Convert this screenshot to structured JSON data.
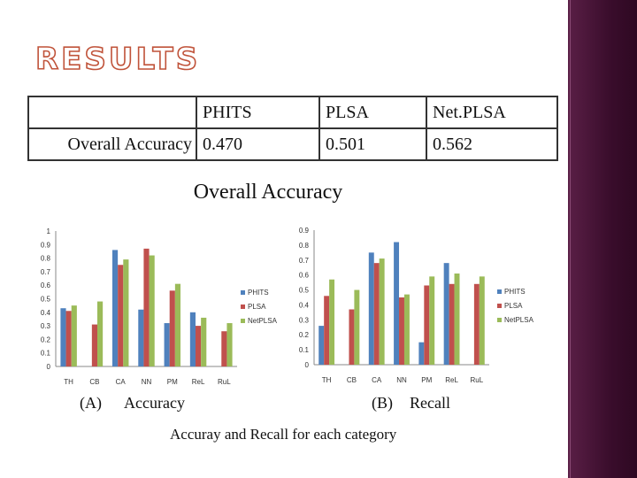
{
  "title": "RESULTS",
  "table": {
    "headers": [
      "",
      "PHITS",
      "PLSA",
      "Net.PLSA"
    ],
    "rows": [
      [
        "Overall Accuracy",
        "0.470",
        "0.501",
        "0.562"
      ]
    ]
  },
  "overall_heading": "Overall Accuracy",
  "captions": {
    "a_letter": "(A)",
    "a_text": "Accuracy",
    "b_letter": "(B)",
    "b_text": "Recall",
    "footer": "Accuray and Recall for each category"
  },
  "colors": {
    "PHITS": "#4f81bd",
    "PLSA": "#c0504d",
    "Net.PLSA": "#9bbb59",
    "title_outline": "#c0533a",
    "side_band": "#3a0d2c"
  },
  "chart_data": [
    {
      "type": "bar",
      "categories": [
        "TH",
        "CB",
        "CA",
        "NN",
        "PM",
        "ReL",
        "RuL"
      ],
      "ylim": [
        0,
        1
      ],
      "yticks": [
        "0",
        "0.1",
        "0.2",
        "0.3",
        "0.4",
        "0.5",
        "0.6",
        "0.7",
        "0.8",
        "0.9",
        "1"
      ],
      "legend": "right",
      "series": [
        {
          "name": "PHITS",
          "values": [
            0.43,
            0,
            0.86,
            0.42,
            0.32,
            0.4,
            0
          ]
        },
        {
          "name": "PLSA",
          "values": [
            0.41,
            0.31,
            0.75,
            0.87,
            0.56,
            0.3,
            0.26
          ]
        },
        {
          "name": "NetPLSA",
          "values": [
            0.45,
            0.48,
            0.79,
            0.82,
            0.61,
            0.36,
            0.32
          ]
        }
      ]
    },
    {
      "type": "bar",
      "categories": [
        "TH",
        "CB",
        "CA",
        "NN",
        "PM",
        "ReL",
        "RuL"
      ],
      "ylim": [
        0,
        0.9
      ],
      "yticks": [
        "0",
        "0.1",
        "0.2",
        "0.3",
        "0.4",
        "0.5",
        "0.6",
        "0.7",
        "0.8",
        "0.9"
      ],
      "legend": "right",
      "series": [
        {
          "name": "PHITS",
          "values": [
            0.26,
            0,
            0.75,
            0.82,
            0.15,
            0.68,
            0
          ]
        },
        {
          "name": "PLSA",
          "values": [
            0.46,
            0.37,
            0.68,
            0.45,
            0.53,
            0.54,
            0.54
          ]
        },
        {
          "name": "NetPLSA",
          "values": [
            0.57,
            0.5,
            0.71,
            0.47,
            0.59,
            0.61,
            0.59
          ]
        }
      ]
    }
  ]
}
